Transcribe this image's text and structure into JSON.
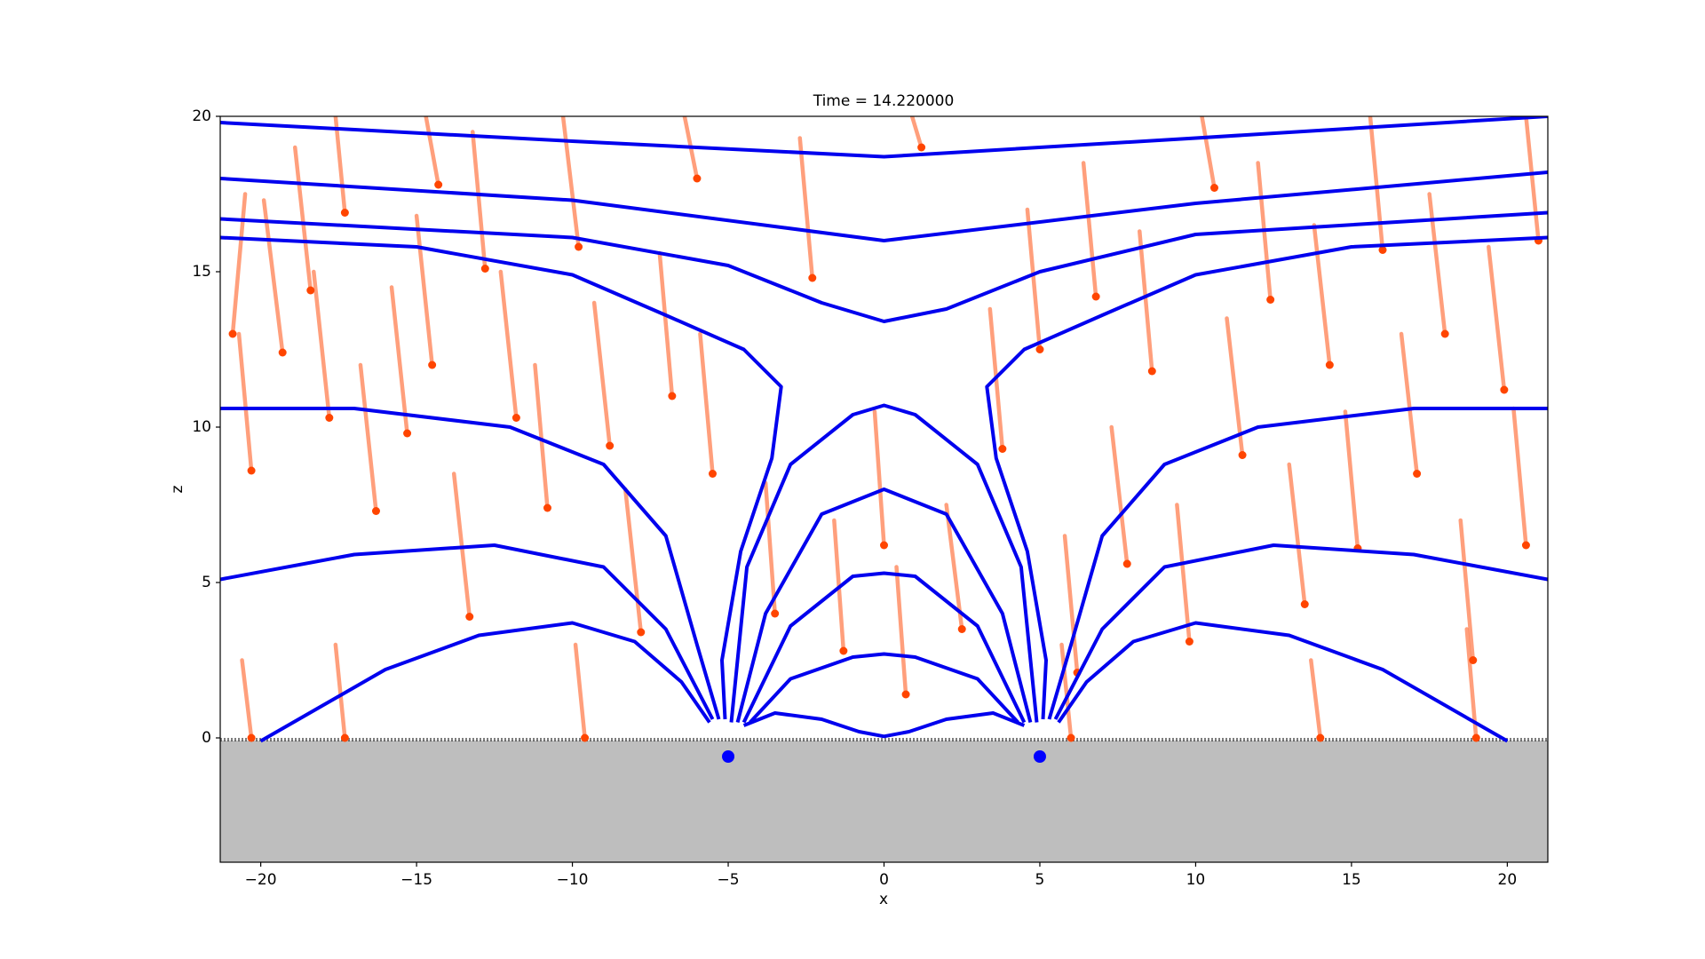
{
  "chart_data": {
    "type": "line",
    "title": "Time = 14.220000",
    "x_label": "x",
    "y_label": "z",
    "xlim": [
      -21.3,
      21.3
    ],
    "ylim": [
      -4,
      20
    ],
    "xticks": [
      {
        "value": -20,
        "label": "−20"
      },
      {
        "value": -15,
        "label": "−15"
      },
      {
        "value": -10,
        "label": "−10"
      },
      {
        "value": -5,
        "label": "−5"
      },
      0,
      5,
      10,
      15,
      20
    ],
    "yticks": [
      0,
      5,
      10,
      15,
      20
    ],
    "ground_color": "#bebebe",
    "series": [
      {
        "color": "#0000ee",
        "x": [
          -21.3,
          -10,
          0,
          10,
          21.3
        ],
        "y": [
          19.8,
          19.2,
          18.7,
          19.3,
          20
        ]
      },
      {
        "color": "#0000ee",
        "x": [
          -21.3,
          -10,
          0,
          10,
          21.3
        ],
        "y": [
          18.0,
          17.3,
          16.0,
          17.2,
          18.2
        ]
      },
      {
        "color": "#0000ee",
        "x": [
          -21.3,
          -10,
          -5,
          -2,
          0,
          2,
          5,
          10,
          21.3
        ],
        "y": [
          16.7,
          16.1,
          15.2,
          14.0,
          13.4,
          13.8,
          15.0,
          16.2,
          16.9
        ]
      },
      {
        "color": "#0000ee",
        "x": [
          -21.3,
          -15,
          -10,
          -7,
          -4.5,
          -3.3,
          -3.6,
          -4.6,
          -5.2,
          -5.1
        ],
        "y": [
          16.1,
          15.8,
          14.9,
          13.6,
          12.5,
          11.3,
          9,
          6,
          2.5,
          0.6
        ]
      },
      {
        "color": "#0000ee",
        "x": [
          21.3,
          15,
          10,
          7,
          4.5,
          3.3,
          3.6,
          4.6,
          5.2,
          5.1
        ],
        "y": [
          16.1,
          15.8,
          14.9,
          13.6,
          12.5,
          11.3,
          9,
          6,
          2.5,
          0.6
        ]
      },
      {
        "color": "#0000ee",
        "x": [
          -21.3,
          -17,
          -12,
          -9,
          -7,
          -6,
          -5.3
        ],
        "y": [
          10.6,
          10.6,
          10.0,
          8.8,
          6.5,
          3,
          0.6
        ]
      },
      {
        "color": "#0000ee",
        "x": [
          21.3,
          17,
          12,
          9,
          7,
          6,
          5.3
        ],
        "y": [
          10.6,
          10.6,
          10.0,
          8.8,
          6.5,
          3,
          0.6
        ]
      },
      {
        "color": "#0000ee",
        "x": [
          -21.3,
          -17,
          -12.5,
          -9,
          -7,
          -5.5
        ],
        "y": [
          5.1,
          5.9,
          6.2,
          5.5,
          3.5,
          0.6
        ]
      },
      {
        "color": "#0000ee",
        "x": [
          21.3,
          17,
          12.5,
          9,
          7,
          5.5
        ],
        "y": [
          5.1,
          5.9,
          6.2,
          5.5,
          3.5,
          0.6
        ]
      },
      {
        "color": "#0000ee",
        "x": [
          -20,
          -16,
          -13,
          -10,
          -8,
          -6.5,
          -5.6
        ],
        "y": [
          -0.1,
          2.2,
          3.3,
          3.7,
          3.1,
          1.8,
          0.5
        ]
      },
      {
        "color": "#0000ee",
        "x": [
          20,
          16,
          13,
          10,
          8,
          6.5,
          5.6
        ],
        "y": [
          -0.1,
          2.2,
          3.3,
          3.7,
          3.1,
          1.8,
          0.5
        ]
      },
      {
        "color": "#0000ee",
        "x": [
          -4.9,
          -4.4,
          -3,
          -1,
          0,
          1,
          3,
          4.4,
          4.9
        ],
        "y": [
          0.5,
          5.5,
          8.8,
          10.4,
          10.7,
          10.4,
          8.8,
          5.5,
          0.5
        ]
      },
      {
        "color": "#0000ee",
        "x": [
          -4.7,
          -3.8,
          -2,
          0,
          2,
          3.8,
          4.7
        ],
        "y": [
          0.5,
          4,
          7.2,
          8,
          7.2,
          4,
          0.5
        ]
      },
      {
        "color": "#0000ee",
        "x": [
          -4.5,
          -3,
          -1,
          0,
          1,
          3,
          4.5
        ],
        "y": [
          0.5,
          3.6,
          5.2,
          5.3,
          5.2,
          3.6,
          0.5
        ]
      },
      {
        "color": "#0000ee",
        "x": [
          -4.3,
          -3,
          -1,
          0,
          1,
          3,
          4.3
        ],
        "y": [
          0.5,
          1.9,
          2.6,
          2.7,
          2.6,
          1.9,
          0.5
        ]
      },
      {
        "color": "#0000ee",
        "x": [
          -4.5,
          -3.5,
          -2,
          -0.8,
          0,
          0.8,
          2,
          3.5,
          4.5
        ],
        "y": [
          0.4,
          0.8,
          0.6,
          0.2,
          0.05,
          0.2,
          0.6,
          0.8,
          0.4
        ]
      }
    ],
    "charges": {
      "color": "#0000ff",
      "x": [
        -5,
        5
      ],
      "y": [
        -0.6,
        -0.6
      ]
    },
    "particles": {
      "color": "#ff4500",
      "trail_color": "#ff7f50",
      "x": [
        -20.9,
        -20.3,
        -19.3,
        -18.4,
        -17.8,
        -17.3,
        -16.3,
        -15.3,
        -14.3,
        -14.5,
        -13.3,
        -12.8,
        -11.8,
        -10.8,
        -9.8,
        -8.8,
        -7.8,
        -6.8,
        -6.0,
        -5.5,
        -3.5,
        -2.3,
        -1.3,
        0,
        0.7,
        1.2,
        2.5,
        3.8,
        5.0,
        6.2,
        6.8,
        7.8,
        8.6,
        9.8,
        10.6,
        11.5,
        12.4,
        13.5,
        14.3,
        15.2,
        16.0,
        17.1,
        18.0,
        18.9,
        19.9,
        20.6,
        21.0,
        -20.3,
        -17.3,
        -9.6,
        6,
        14,
        19
      ],
      "y": [
        13.0,
        8.6,
        12.4,
        14.4,
        10.3,
        16.9,
        7.3,
        9.8,
        17.8,
        12.0,
        3.9,
        15.1,
        10.3,
        7.4,
        15.8,
        9.4,
        3.4,
        11.0,
        18.0,
        8.5,
        4.0,
        14.8,
        2.8,
        6.2,
        1.4,
        19.0,
        3.5,
        9.3,
        12.5,
        2.1,
        14.2,
        5.6,
        11.8,
        3.1,
        17.7,
        9.1,
        14.1,
        4.3,
        12.0,
        6.1,
        15.7,
        8.5,
        13.0,
        2.5,
        11.2,
        6.2,
        16.0,
        0,
        0,
        0,
        0,
        0,
        0
      ],
      "x_tail": [
        -20.5,
        -20.7,
        -19.9,
        -18.9,
        -18.3,
        -17.6,
        -16.8,
        -15.8,
        -14.7,
        -15.0,
        -13.8,
        -13.2,
        -12.3,
        -11.2,
        -10.3,
        -9.3,
        -8.3,
        -7.2,
        -6.4,
        -5.9,
        -3.8,
        -2.7,
        -1.6,
        -0.3,
        0.4,
        0.9,
        2.0,
        3.4,
        4.6,
        5.8,
        6.4,
        7.3,
        8.2,
        9.4,
        10.2,
        11.0,
        12.0,
        13.0,
        13.8,
        14.8,
        15.6,
        16.6,
        17.5,
        18.5,
        19.4,
        20.2,
        20.6,
        -20.6,
        -17.6,
        -9.9,
        5.7,
        13.7,
        18.7
      ],
      "y_tail": [
        17.5,
        13,
        17.3,
        19,
        15,
        20,
        12,
        14.5,
        20,
        16.8,
        8.5,
        19.5,
        15,
        12,
        20,
        14,
        8,
        15.6,
        20,
        13,
        8.2,
        19.3,
        7,
        10.5,
        5.5,
        20,
        7.5,
        13.8,
        17,
        6.5,
        18.5,
        10,
        16.3,
        7.5,
        20,
        13.5,
        18.5,
        8.8,
        16.5,
        10.5,
        20,
        13,
        17.5,
        7,
        15.8,
        10.6,
        20,
        2.5,
        3,
        3,
        3,
        2.5,
        3.5
      ]
    }
  }
}
